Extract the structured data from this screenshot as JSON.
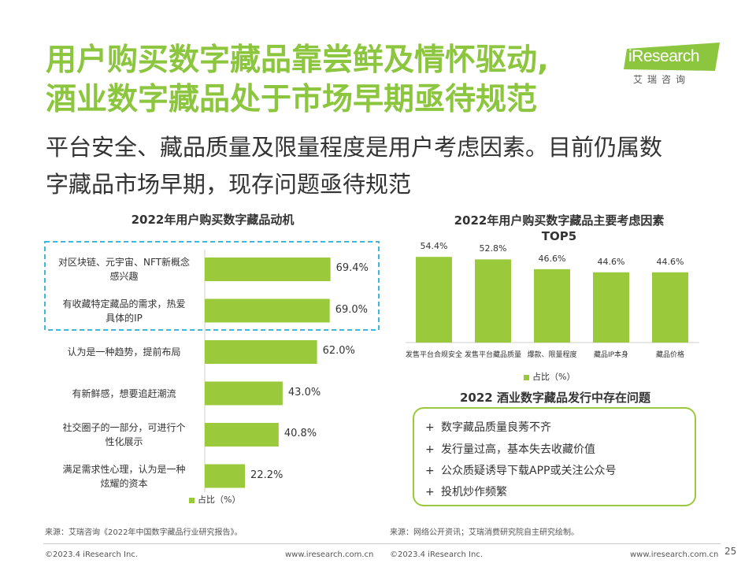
{
  "title_line1": "用户购买数字藏品靠尝鲜及情怀驱动,",
  "title_line2": "酒业数字藏品处于市场早期亟待规范",
  "subtitle_line1": "平台安全、藏品质量及限量程度是用户考虑因素。目前仍属数",
  "subtitle_line2": "字藏品市场早期，现存问题亟待规范",
  "logo": {
    "text": "iResearch",
    "sub": "艾瑞咨询"
  },
  "colors": {
    "accent": "#8cc63f",
    "bar": "#9ac93c",
    "highlight": "#3fb8e0"
  },
  "chart_data": [
    {
      "type": "bar",
      "orientation": "horizontal",
      "title": "2022年用户购买数字藏品动机",
      "categories": [
        "对区块链、元宇宙、NFT新概念感兴趣",
        "有收藏特定藏品的需求，热爱具体的IP",
        "认为是一种趋势，提前布局",
        "有新鲜感，想要追赶潮流",
        "社交圈子的一部分，可进行个性化展示",
        "满足需求性心理，认为是一种炫耀的资本"
      ],
      "category_lines": [
        [
          "对区块链、元宇宙、NFT新概念",
          "感兴趣"
        ],
        [
          "有收藏特定藏品的需求，热爱",
          "具体的IP"
        ],
        [
          "认为是一种趋势，提前布局"
        ],
        [
          "有新鲜感，想要追赶潮流"
        ],
        [
          "社交圈子的一部分，可进行个",
          "性化展示"
        ],
        [
          "满足需求性心理，认为是一种",
          "炫耀的资本"
        ]
      ],
      "values": [
        69.4,
        69.0,
        62.0,
        43.0,
        40.8,
        22.2
      ],
      "value_labels": [
        "69.4%",
        "69.0%",
        "62.0%",
        "43.0%",
        "40.8%",
        "22.2%"
      ],
      "highlighted": [
        0,
        1
      ],
      "legend": "占比（%）"
    },
    {
      "type": "bar",
      "orientation": "vertical",
      "title_line1": "2022年用户购买数字藏品主要考虑因素",
      "title_line2": "TOP5",
      "categories": [
        "发售平台合规安全",
        "发售平台藏品质量",
        "爆款、限量程度",
        "藏品IP本身",
        "藏品价格"
      ],
      "values": [
        54.4,
        52.8,
        46.6,
        44.6,
        44.6
      ],
      "value_labels": [
        "54.4%",
        "52.8%",
        "46.6%",
        "44.6%",
        "44.6%"
      ],
      "legend": "占比（%）"
    }
  ],
  "issues": {
    "title": "2022 酒业数字藏品发行中存在问题",
    "items": [
      "数字藏品质量良莠不齐",
      "发行量过高，基本失去收藏价值",
      "公众质疑诱导下载APP或关注公众号",
      "投机炒作频繁"
    ],
    "marker": "+"
  },
  "source_left": "来源：艾瑞咨询《2022年中国数字藏品行业研究报告》。",
  "source_right": "来源：网络公开资讯；艾瑞消费研究院自主研究绘制。",
  "footer_left": {
    "copyright": "©2023.4 iResearch Inc.",
    "url": "www.iresearch.com.cn"
  },
  "footer_right": {
    "copyright": "©2023.4 iResearch Inc.",
    "url": "www.iresearch.com.cn"
  },
  "page_number": "25"
}
